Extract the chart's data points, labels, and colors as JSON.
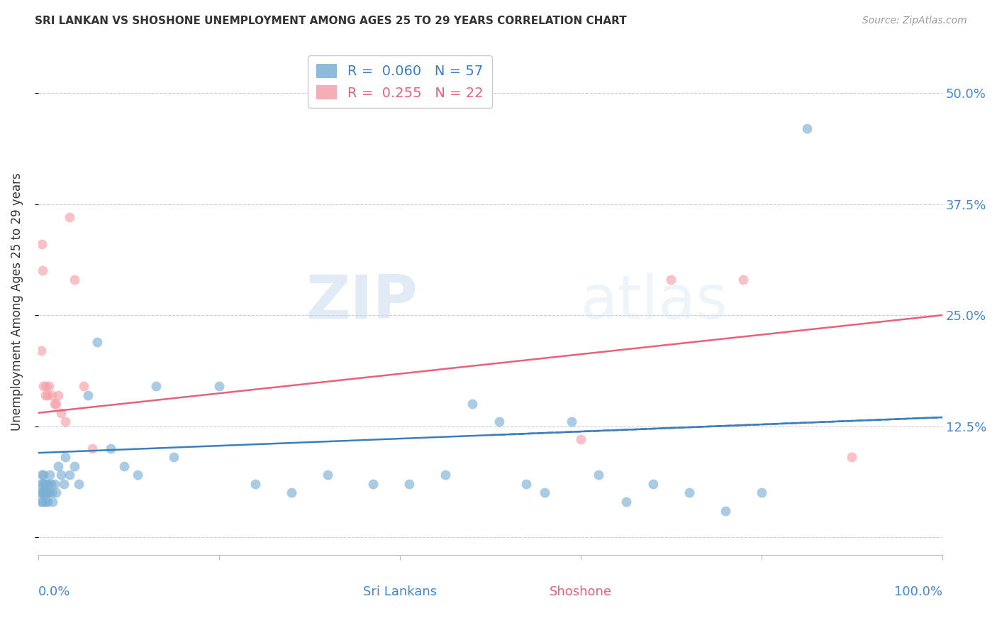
{
  "title": "SRI LANKAN VS SHOSHONE UNEMPLOYMENT AMONG AGES 25 TO 29 YEARS CORRELATION CHART",
  "source": "Source: ZipAtlas.com",
  "ylabel": "Unemployment Among Ages 25 to 29 years",
  "yticks": [
    0.0,
    0.125,
    0.25,
    0.375,
    0.5
  ],
  "ytick_labels": [
    "",
    "12.5%",
    "25.0%",
    "37.5%",
    "50.0%"
  ],
  "xtick_labels_bottom": [
    "0.0%",
    "100.0%"
  ],
  "xlim": [
    0.0,
    1.0
  ],
  "ylim": [
    -0.02,
    0.55
  ],
  "sri_lanka_color": "#7BAFD4",
  "shoshone_color": "#F4A0A8",
  "sri_lanka_line_color": "#3B7EC0",
  "shoshone_line_color": "#E8607A",
  "legend_sri_r": "0.060",
  "legend_sri_n": "57",
  "legend_sho_r": "0.255",
  "legend_sho_n": "22",
  "watermark_zip": "ZIP",
  "watermark_atlas": "atlas",
  "sri_lanka_x": [
    0.002,
    0.003,
    0.003,
    0.004,
    0.004,
    0.005,
    0.005,
    0.006,
    0.006,
    0.007,
    0.007,
    0.008,
    0.009,
    0.009,
    0.01,
    0.01,
    0.011,
    0.012,
    0.013,
    0.014,
    0.015,
    0.016,
    0.018,
    0.02,
    0.022,
    0.025,
    0.028,
    0.03,
    0.035,
    0.04,
    0.045,
    0.055,
    0.065,
    0.08,
    0.095,
    0.11,
    0.13,
    0.15,
    0.2,
    0.24,
    0.28,
    0.32,
    0.37,
    0.41,
    0.45,
    0.48,
    0.51,
    0.54,
    0.56,
    0.59,
    0.62,
    0.65,
    0.68,
    0.72,
    0.76,
    0.8,
    0.85
  ],
  "sri_lanka_y": [
    0.05,
    0.04,
    0.06,
    0.05,
    0.07,
    0.04,
    0.06,
    0.05,
    0.07,
    0.05,
    0.06,
    0.04,
    0.05,
    0.06,
    0.04,
    0.05,
    0.06,
    0.05,
    0.07,
    0.06,
    0.05,
    0.04,
    0.06,
    0.05,
    0.08,
    0.07,
    0.06,
    0.09,
    0.07,
    0.08,
    0.06,
    0.16,
    0.22,
    0.1,
    0.08,
    0.07,
    0.17,
    0.09,
    0.17,
    0.06,
    0.05,
    0.07,
    0.06,
    0.06,
    0.07,
    0.15,
    0.13,
    0.06,
    0.05,
    0.13,
    0.07,
    0.04,
    0.06,
    0.05,
    0.03,
    0.05,
    0.46
  ],
  "shoshone_x": [
    0.003,
    0.004,
    0.005,
    0.006,
    0.008,
    0.009,
    0.01,
    0.012,
    0.015,
    0.018,
    0.02,
    0.022,
    0.025,
    0.03,
    0.035,
    0.04,
    0.05,
    0.06,
    0.6,
    0.7,
    0.78,
    0.9
  ],
  "shoshone_y": [
    0.21,
    0.33,
    0.3,
    0.17,
    0.16,
    0.17,
    0.16,
    0.17,
    0.16,
    0.15,
    0.15,
    0.16,
    0.14,
    0.13,
    0.36,
    0.29,
    0.17,
    0.1,
    0.11,
    0.29,
    0.29,
    0.09
  ],
  "sri_lanka_trendline_x": [
    0.0,
    1.0
  ],
  "sri_lanka_trendline_y": [
    0.095,
    0.135
  ],
  "shoshone_trendline_x": [
    0.0,
    1.0
  ],
  "shoshone_trendline_y": [
    0.14,
    0.25
  ]
}
